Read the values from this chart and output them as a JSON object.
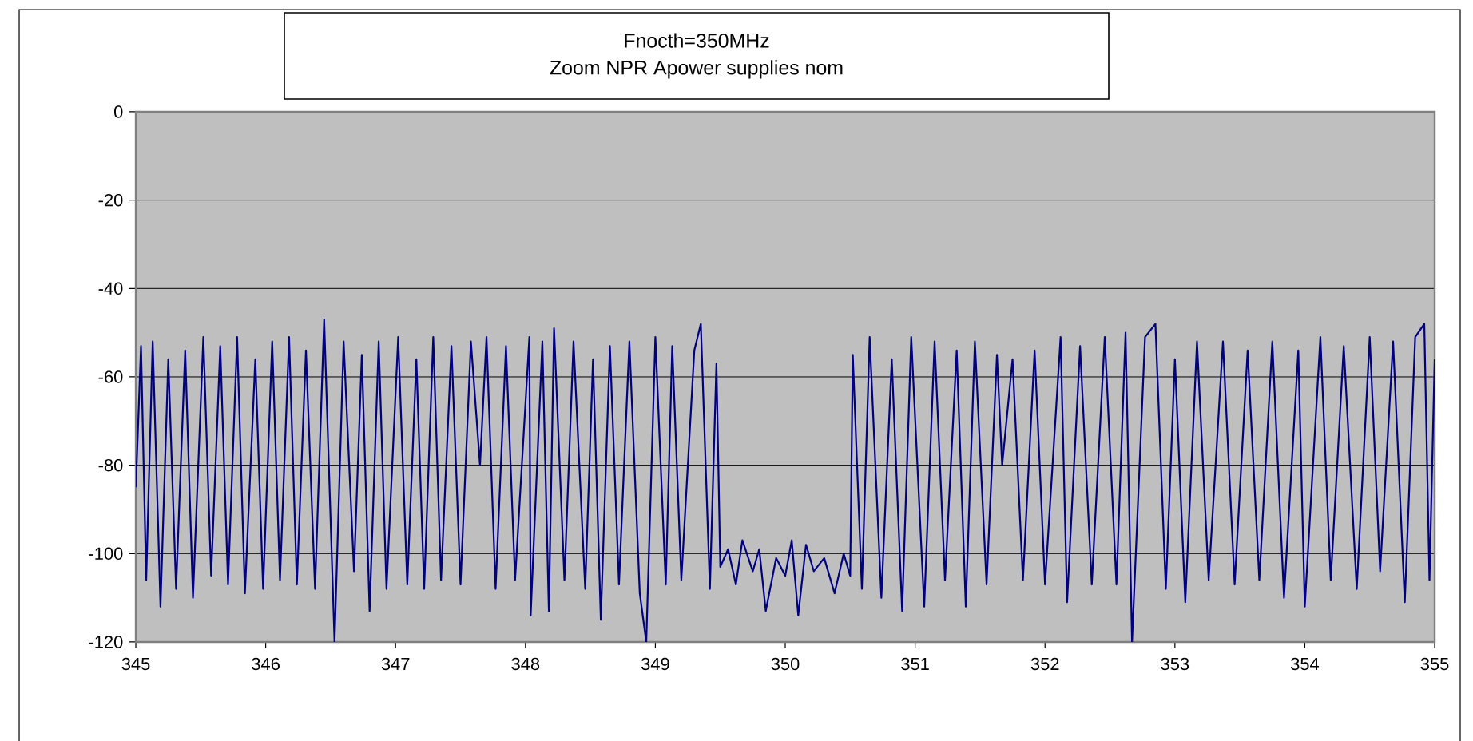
{
  "chart_data": {
    "type": "line",
    "title": "Fnocth=350MHz",
    "subtitle": "Zoom NPR Apower supplies nom",
    "xlim": [
      345,
      355
    ],
    "xticks": [
      345,
      346,
      347,
      348,
      349,
      350,
      351,
      352,
      353,
      354,
      355
    ],
    "ylim": [
      -120,
      0
    ],
    "yticks": [
      -120,
      -100,
      -80,
      -60,
      -40,
      -20,
      0
    ],
    "grid": "y",
    "marker": "none",
    "series": [
      {
        "color": "#000080",
        "x": [
          345.0,
          345.04,
          345.08,
          345.13,
          345.19,
          345.25,
          345.31,
          345.38,
          345.44,
          345.52,
          345.58,
          345.65,
          345.71,
          345.78,
          345.84,
          345.92,
          345.98,
          346.05,
          346.11,
          346.18,
          346.24,
          346.31,
          346.38,
          346.45,
          346.53,
          346.6,
          346.68,
          346.74,
          346.8,
          346.87,
          346.93,
          347.02,
          347.09,
          347.16,
          347.22,
          347.29,
          347.35,
          347.43,
          347.5,
          347.58,
          347.65,
          347.7,
          347.77,
          347.85,
          347.92,
          348.03,
          348.04,
          348.13,
          348.18,
          348.22,
          348.3,
          348.37,
          348.46,
          348.52,
          348.58,
          348.65,
          348.72,
          348.8,
          348.88,
          348.93,
          349.0,
          349.08,
          349.13,
          349.2,
          349.3,
          349.35,
          349.42,
          349.47,
          349.5,
          349.56,
          349.62,
          349.67,
          349.75,
          349.8,
          349.85,
          349.93,
          350.0,
          350.05,
          350.1,
          350.16,
          350.22,
          350.3,
          350.38,
          350.45,
          350.5,
          350.52,
          350.59,
          350.65,
          350.74,
          350.82,
          350.9,
          350.97,
          351.07,
          351.15,
          351.23,
          351.32,
          351.39,
          351.46,
          351.55,
          351.63,
          351.67,
          351.75,
          351.83,
          351.92,
          352.0,
          352.12,
          352.17,
          352.27,
          352.36,
          352.46,
          352.55,
          352.62,
          352.67,
          352.77,
          352.85,
          352.93,
          353.0,
          353.08,
          353.17,
          353.26,
          353.37,
          353.46,
          353.56,
          353.65,
          353.75,
          353.84,
          353.95,
          354.0,
          354.12,
          354.2,
          354.3,
          354.4,
          354.5,
          354.58,
          354.68,
          354.77,
          354.85,
          354.92,
          354.96,
          355.0
        ],
        "values": [
          -85,
          -53,
          -106,
          -52,
          -112,
          -56,
          -108,
          -54,
          -110,
          -51,
          -105,
          -53,
          -107,
          -51,
          -109,
          -56,
          -108,
          -52,
          -106,
          -51,
          -107,
          -54,
          -108,
          -47,
          -120,
          -52,
          -104,
          -55,
          -113,
          -52,
          -108,
          -51,
          -107,
          -56,
          -108,
          -51,
          -106,
          -53,
          -107,
          -52,
          -80,
          -51,
          -108,
          -53,
          -106,
          -51,
          -114,
          -52,
          -113,
          -49,
          -106,
          -52,
          -108,
          -56,
          -115,
          -53,
          -107,
          -52,
          -109,
          -120,
          -51,
          -107,
          -53,
          -106,
          -54,
          -48,
          -108,
          -57,
          -103,
          -99,
          -107,
          -97,
          -104,
          -99,
          -113,
          -101,
          -105,
          -97,
          -114,
          -98,
          -104,
          -101,
          -109,
          -100,
          -105,
          -55,
          -108,
          -51,
          -110,
          -56,
          -113,
          -51,
          -112,
          -52,
          -106,
          -54,
          -112,
          -52,
          -107,
          -55,
          -80,
          -56,
          -106,
          -54,
          -107,
          -51,
          -111,
          -53,
          -107,
          -51,
          -107,
          -50,
          -120,
          -51,
          -48,
          -108,
          -56,
          -111,
          -52,
          -106,
          -52,
          -107,
          -54,
          -106,
          -52,
          -110,
          -54,
          -112,
          -51,
          -106,
          -53,
          -108,
          -51,
          -104,
          -52,
          -111,
          -51,
          -48,
          -106,
          -56
        ]
      }
    ]
  }
}
